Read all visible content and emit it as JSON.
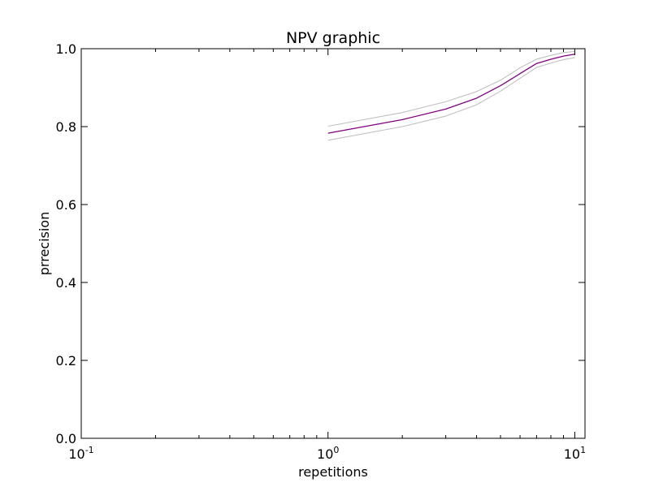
{
  "chart_data": {
    "type": "line",
    "title": "NPV graphic",
    "xlabel": "repetitions",
    "ylabel": "prrecision",
    "xscale": "log",
    "xlim": [
      0.1,
      11
    ],
    "ylim": [
      0,
      1.0
    ],
    "grid": false,
    "legend": "none",
    "x_ticks": [
      {
        "value": 0.1,
        "base": "10",
        "exp": "-1"
      },
      {
        "value": 1,
        "base": "10",
        "exp": "0"
      },
      {
        "value": 10,
        "base": "10",
        "exp": "1"
      }
    ],
    "y_ticks": [
      {
        "value": 0.0,
        "label": "0.0"
      },
      {
        "value": 0.2,
        "label": "0.2"
      },
      {
        "value": 0.4,
        "label": "0.4"
      },
      {
        "value": 0.6,
        "label": "0.6"
      },
      {
        "value": 0.8,
        "label": "0.8"
      },
      {
        "value": 1.0,
        "label": "1.0"
      }
    ],
    "x": [
      1,
      2,
      3,
      4,
      5,
      6,
      7,
      8,
      9,
      10
    ],
    "series": [
      {
        "role": "mean",
        "color": "#800080",
        "values": [
          0.783,
          0.818,
          0.845,
          0.873,
          0.905,
          0.936,
          0.962,
          0.973,
          0.981,
          0.986
        ]
      },
      {
        "role": "upper",
        "color": "#c0c0c0",
        "values": [
          0.801,
          0.836,
          0.864,
          0.89,
          0.919,
          0.951,
          0.973,
          0.983,
          0.99,
          0.993
        ]
      },
      {
        "role": "lower",
        "color": "#c0c0c0",
        "values": [
          0.765,
          0.8,
          0.827,
          0.856,
          0.891,
          0.924,
          0.952,
          0.963,
          0.972,
          0.977
        ]
      }
    ]
  }
}
